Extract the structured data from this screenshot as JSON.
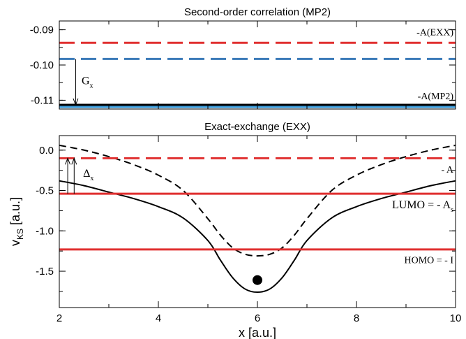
{
  "chart_data": [
    {
      "type": "line",
      "title": "Second-order correlation (MP2)",
      "xlabel": "",
      "ylabel": "",
      "xlim": [
        2,
        10
      ],
      "ylim": [
        -0.1125,
        -0.0875
      ],
      "yticks": [
        "-0.09",
        "-0.10",
        "-0.11"
      ],
      "ytick_values": [
        -0.09,
        -0.1,
        -0.11
      ],
      "grid": false,
      "series": [
        {
          "kind": "hline",
          "y": -0.0937,
          "color": "#e03030",
          "style": "dashed"
        },
        {
          "kind": "hline",
          "y": -0.0983,
          "color": "#3a7ab8",
          "style": "dashed"
        },
        {
          "kind": "hline",
          "y": -0.1113,
          "color": "#000000",
          "style": "solid"
        },
        {
          "kind": "hline",
          "y": -0.1119,
          "color": "#3a9ad8",
          "style": "solid"
        }
      ],
      "annotations": [
        {
          "text": "-A(EXX)",
          "x": 10.0,
          "y": -0.0916,
          "align": "end"
        },
        {
          "text": "-A(MP2)",
          "x": 10.0,
          "y": -0.1097,
          "align": "end"
        },
        {
          "text": "G",
          "sub": "x",
          "x": 2.45,
          "y": -0.1055
        }
      ],
      "arrows": [
        {
          "x": 2.33,
          "y_from": -0.0983,
          "y_to": -0.1113
        }
      ]
    },
    {
      "type": "line",
      "title": "Exact-exchange (EXX)",
      "xlabel": "x [a.u.]",
      "ylabel": "v",
      "ylabel_sub": "KS",
      "ylabel_unit": " [a.u.]",
      "xlim": [
        2,
        10
      ],
      "ylim": [
        -1.95,
        0.18
      ],
      "xticks": [
        "2",
        "4",
        "6",
        "8",
        "10"
      ],
      "xtick_values": [
        2,
        4,
        6,
        8,
        10
      ],
      "yticks": [
        "0.0",
        "-0.5",
        "-1.0",
        "-1.5"
      ],
      "ytick_values": [
        0.0,
        -0.5,
        -1.0,
        -1.5
      ],
      "grid": false,
      "series": [
        {
          "kind": "curve",
          "color": "#000000",
          "style": "solid",
          "x": [
            2.0,
            2.5,
            3.0,
            3.5,
            4.0,
            4.5,
            5.0,
            5.25,
            5.5,
            5.75,
            6.0,
            6.25,
            6.5,
            6.75,
            7.0,
            7.5,
            8.0,
            8.5,
            9.0,
            9.5,
            10.0
          ],
          "y": [
            -0.38,
            -0.44,
            -0.52,
            -0.6,
            -0.7,
            -0.84,
            -1.12,
            -1.36,
            -1.58,
            -1.72,
            -1.76,
            -1.72,
            -1.58,
            -1.36,
            -1.12,
            -0.84,
            -0.7,
            -0.6,
            -0.52,
            -0.44,
            -0.38
          ]
        },
        {
          "kind": "curve",
          "color": "#000000",
          "style": "dashed",
          "x": [
            2.0,
            2.5,
            3.0,
            3.5,
            4.0,
            4.5,
            5.0,
            5.25,
            5.5,
            5.75,
            6.0,
            6.25,
            6.5,
            6.75,
            7.0,
            7.5,
            8.0,
            8.5,
            9.0,
            9.5,
            10.0
          ],
          "y": [
            0.06,
            0.0,
            -0.08,
            -0.18,
            -0.31,
            -0.5,
            -0.85,
            -1.05,
            -1.21,
            -1.29,
            -1.31,
            -1.29,
            -1.21,
            -1.05,
            -0.85,
            -0.5,
            -0.31,
            -0.18,
            -0.08,
            0.0,
            0.06
          ]
        },
        {
          "kind": "hline",
          "y": -0.1,
          "color": "#e03030",
          "style": "dashed"
        },
        {
          "kind": "hline",
          "y": -0.54,
          "color": "#e03030",
          "style": "solid"
        },
        {
          "kind": "hline",
          "y": -1.23,
          "color": "#e03030",
          "style": "solid"
        },
        {
          "kind": "point",
          "x": 6.0,
          "y": -1.61,
          "color": "#000000"
        }
      ],
      "annotations": [
        {
          "text": "- A",
          "x": 10.0,
          "y": -0.28,
          "align": "end"
        },
        {
          "text": "LUMO =  - A",
          "sub": "s",
          "x": 10.0,
          "y": -0.72,
          "align": "end"
        },
        {
          "text": "HOMO =  - I",
          "x": 10.0,
          "y": -1.4,
          "align": "end"
        },
        {
          "text": "Δ",
          "sub": "x",
          "x": 2.48,
          "y": -0.33
        }
      ],
      "arrows": [
        {
          "x": 2.3,
          "y_from": -0.54,
          "y_to": -0.1
        },
        {
          "x": 2.17,
          "y_from": -0.54,
          "y_to": -0.1
        }
      ]
    }
  ]
}
